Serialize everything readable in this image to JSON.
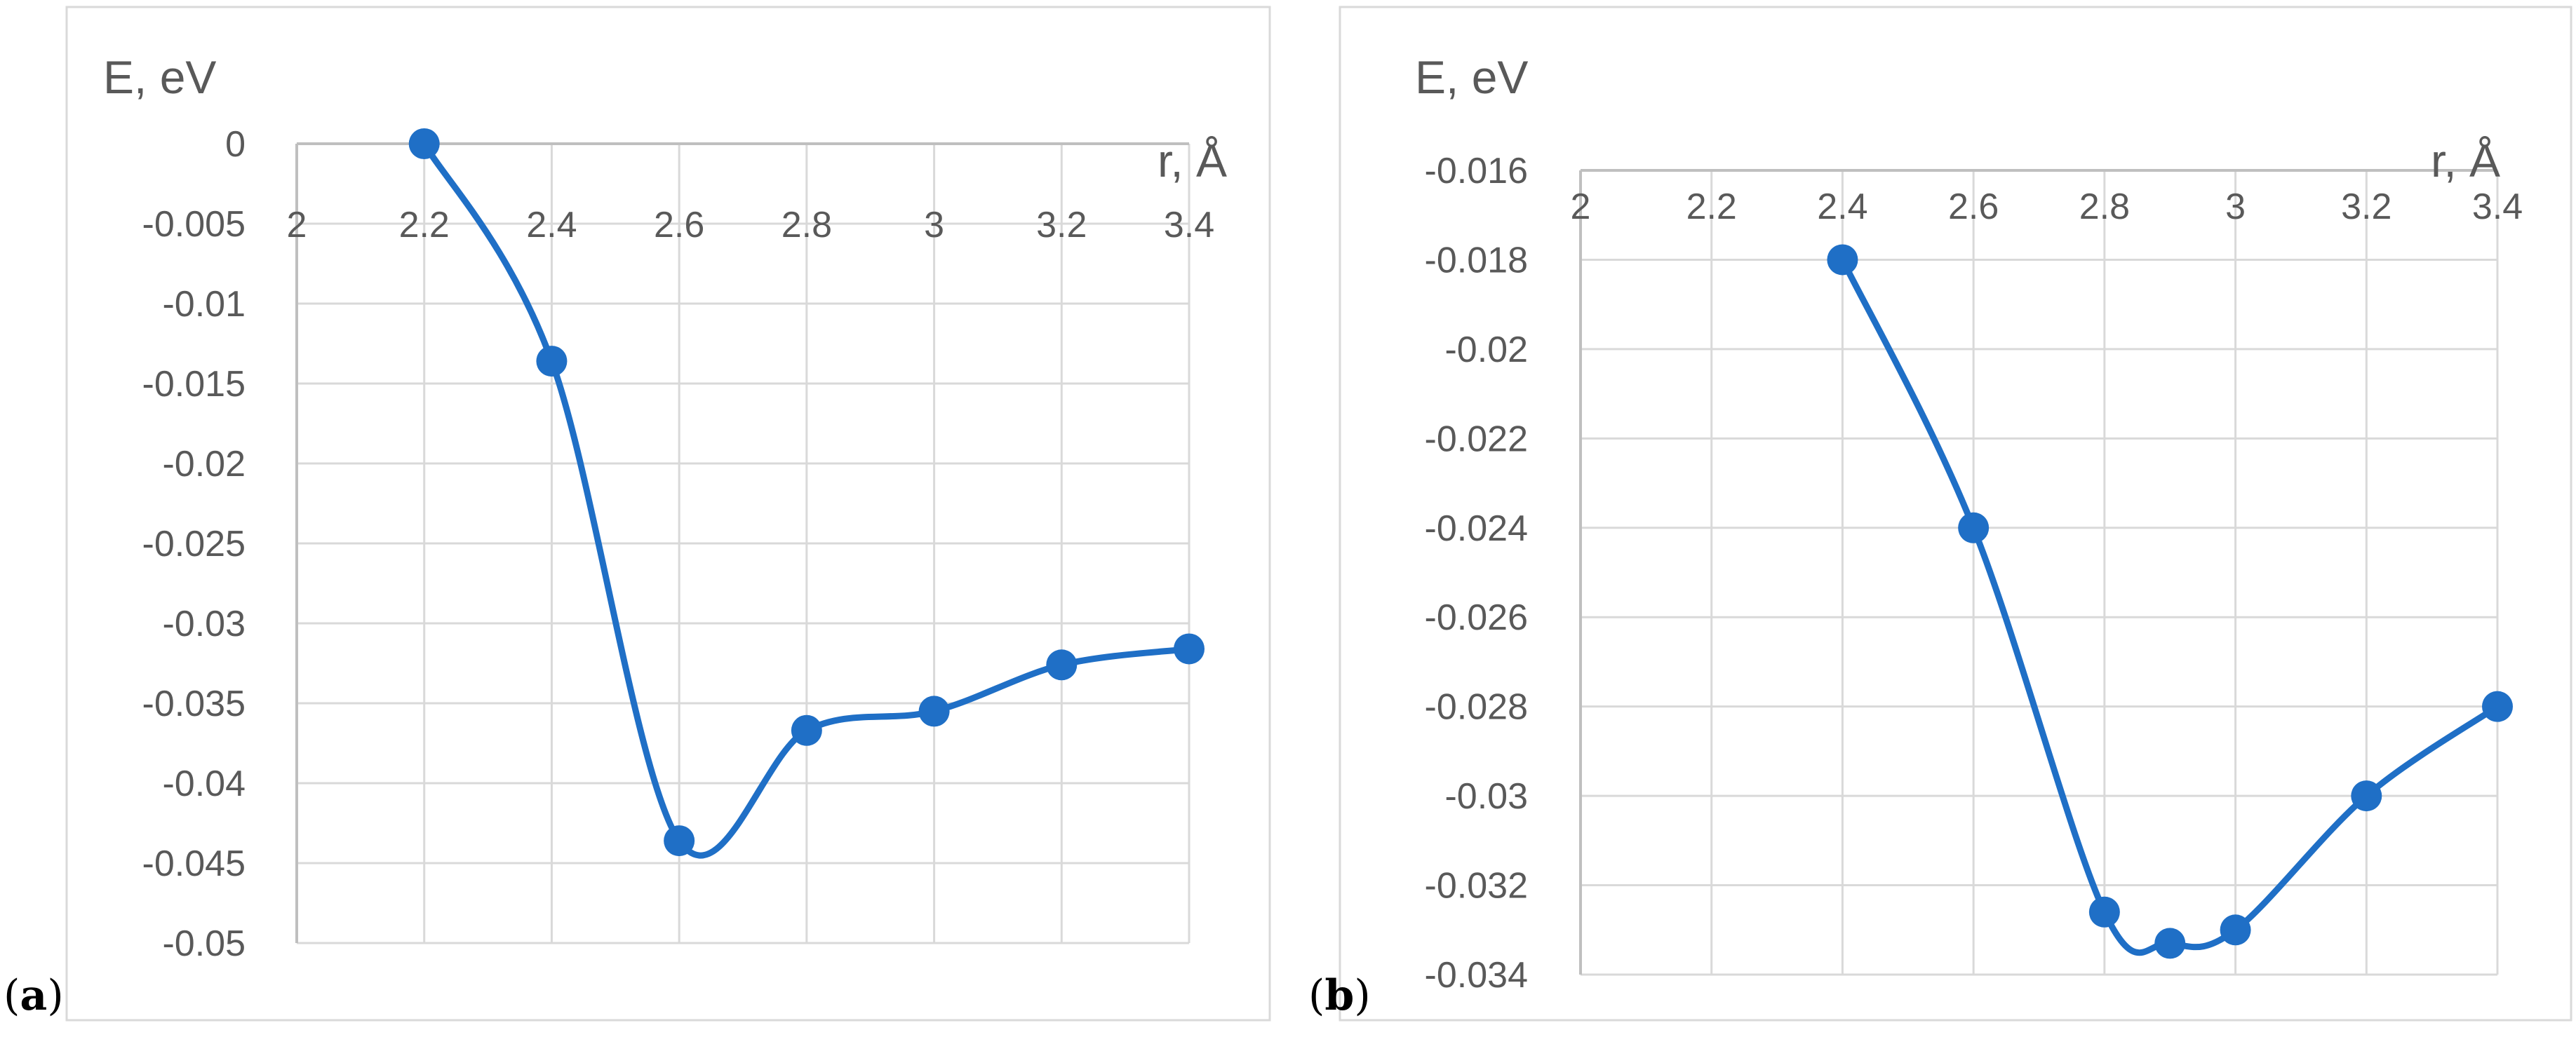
{
  "panels": [
    {
      "label_open": "(",
      "label_letter": "a",
      "label_close": ")"
    },
    {
      "label_open": "(",
      "label_letter": "b",
      "label_close": ")"
    }
  ],
  "chart_data": [
    {
      "type": "line",
      "smooth": true,
      "marker": "circle",
      "color": "#1f6fc6",
      "xlabel": "r, Å",
      "ylabel": "E, eV",
      "xlim": [
        2,
        3.4
      ],
      "ylim": [
        -0.05,
        0
      ],
      "x_ticks": [
        "2",
        "2.2",
        "2.4",
        "2.6",
        "2.8",
        "3",
        "3.2",
        "3.4"
      ],
      "y_ticks": [
        "0",
        "-0.005",
        "-0.01",
        "-0.015",
        "-0.02",
        "-0.025",
        "-0.03",
        "-0.035",
        "-0.04",
        "-0.045",
        "-0.05"
      ],
      "grid": true,
      "x": [
        2.2,
        2.4,
        2.6,
        2.8,
        3.0,
        3.2,
        3.4
      ],
      "y": [
        0,
        -0.0136,
        -0.0436,
        -0.0367,
        -0.0355,
        -0.0326,
        -0.0316
      ]
    },
    {
      "type": "line",
      "smooth": true,
      "marker": "circle",
      "color": "#1f6fc6",
      "xlabel": "r, Å",
      "ylabel": "E, eV",
      "xlim": [
        2,
        3.4
      ],
      "ylim": [
        -0.034,
        -0.016
      ],
      "x_ticks": [
        "2",
        "2.2",
        "2.4",
        "2.6",
        "2.8",
        "3",
        "3.2",
        "3.4"
      ],
      "y_ticks": [
        "-0.016",
        "-0.018",
        "-0.02",
        "-0.022",
        "-0.024",
        "-0.026",
        "-0.028",
        "-0.03",
        "-0.032",
        "-0.034"
      ],
      "grid": true,
      "x": [
        2.4,
        2.6,
        2.8,
        2.9,
        3.0,
        3.2,
        3.4
      ],
      "y": [
        -0.018,
        -0.024,
        -0.0326,
        -0.0333,
        -0.033,
        -0.03,
        -0.028
      ]
    }
  ]
}
